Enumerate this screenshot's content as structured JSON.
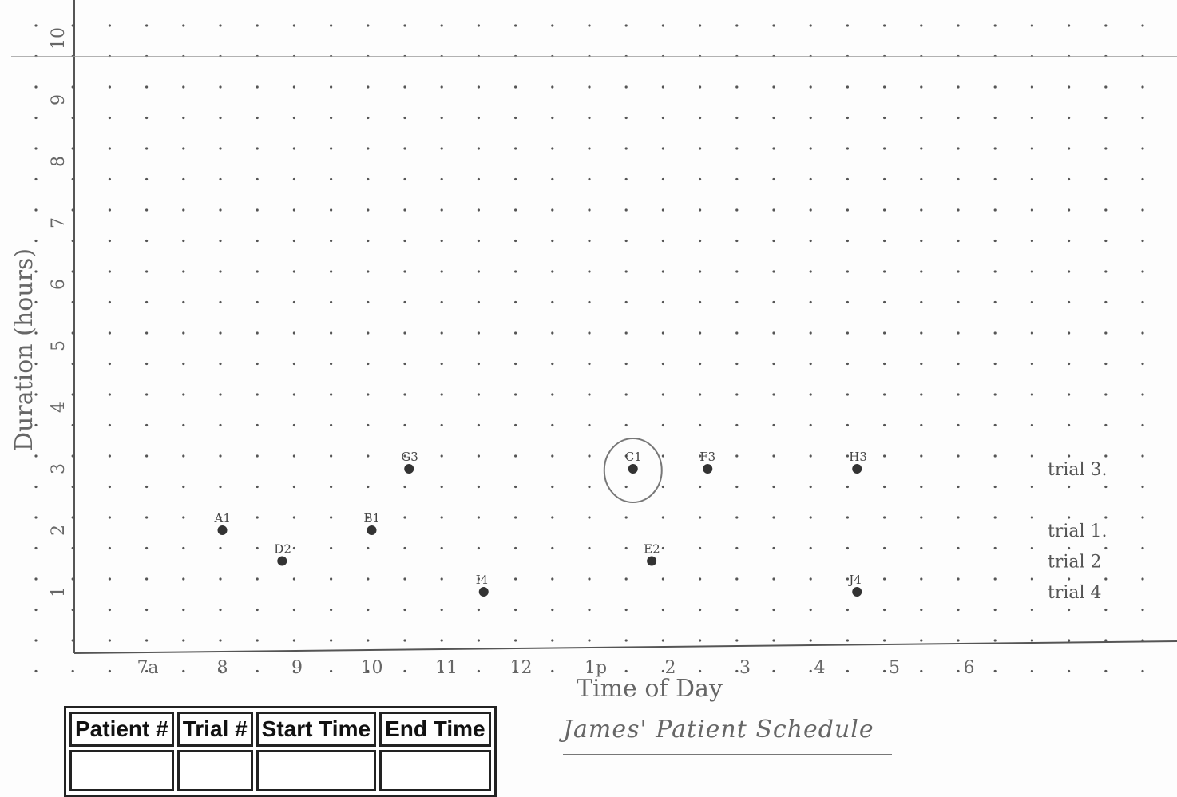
{
  "chart_data": {
    "type": "scatter",
    "title": "",
    "xlabel": "Time of Day",
    "ylabel": "Duration (hours)",
    "x_ticks": [
      "7a",
      "8",
      "9",
      "10",
      "11",
      "12",
      "1p",
      "2",
      "3",
      "4",
      "5",
      "6"
    ],
    "x_tick_hours": [
      7,
      8,
      9,
      10,
      11,
      12,
      13,
      14,
      15,
      16,
      17,
      18
    ],
    "y_ticks": [
      1,
      2,
      3,
      4,
      5,
      6,
      7,
      8,
      9,
      10
    ],
    "ylim": [
      0,
      10.4
    ],
    "grid": "dot grid",
    "points": [
      {
        "label": "A1",
        "x": 8.0,
        "y": 2.0
      },
      {
        "label": "B1",
        "x": 10.0,
        "y": 2.0
      },
      {
        "label": "C1",
        "x": 13.5,
        "y": 3.0,
        "circled": true
      },
      {
        "label": "D2",
        "x": 8.8,
        "y": 1.5
      },
      {
        "label": "E2",
        "x": 13.75,
        "y": 1.5
      },
      {
        "label": "F3",
        "x": 14.5,
        "y": 3.0
      },
      {
        "label": "G3",
        "x": 10.5,
        "y": 3.0
      },
      {
        "label": "H3",
        "x": 16.5,
        "y": 3.0
      },
      {
        "label": "I4",
        "x": 11.5,
        "y": 1.0
      },
      {
        "label": "J4",
        "x": 16.5,
        "y": 1.0
      }
    ],
    "annotations": [
      {
        "text": "trial 3.",
        "y": 3.0
      },
      {
        "text": "trial 1.",
        "y": 2.0
      },
      {
        "text": "trial 2",
        "y": 1.5
      },
      {
        "text": "trial 4",
        "y": 1.0
      }
    ]
  },
  "caption": "James' Patient Schedule",
  "table": {
    "headers": [
      "Patient #",
      "Trial #",
      "Start Time",
      "End Time"
    ]
  }
}
